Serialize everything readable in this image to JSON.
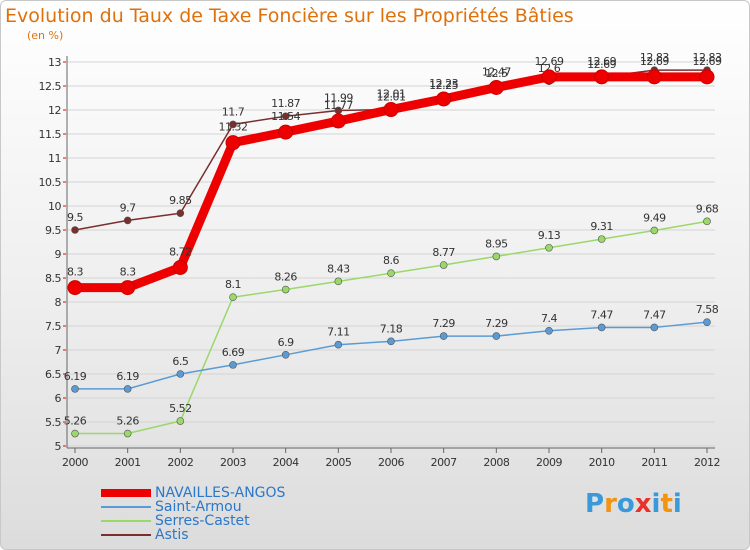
{
  "header": {
    "title": "Evolution du Taux de Taxe Foncière sur les Propriétés Bâties",
    "unit": "(en %)"
  },
  "brand": {
    "letters": [
      "P",
      "r",
      "o",
      "x",
      "i",
      "t",
      "i"
    ],
    "colors": [
      "#3a9ad9",
      "#f29312",
      "#3a9ad9",
      "#e8312a",
      "#3a9ad9",
      "#f29312",
      "#3a9ad9"
    ]
  },
  "chart_data": {
    "type": "line",
    "title": "Evolution du Taux de Taxe Foncière sur les Propriétés Bâties",
    "ylabel": "(en %)",
    "xlabel": "",
    "x": [
      "2000",
      "2001",
      "2002",
      "2003",
      "2004",
      "2005",
      "2006",
      "2007",
      "2008",
      "2009",
      "2010",
      "2011",
      "2012"
    ],
    "ylim": [
      5,
      13
    ],
    "yticks": [
      "5",
      "5.5",
      "6",
      "6.5",
      "7",
      "7.5",
      "8",
      "8.5",
      "9",
      "9.5",
      "10",
      "10.5",
      "11",
      "11.5",
      "12",
      "12.5",
      "13"
    ],
    "grid": "horizontal",
    "legend_position": "bottom-left",
    "series": [
      {
        "name": "Astis",
        "color": "#7a2e2e",
        "values": [
          9.5,
          9.7,
          9.85,
          11.7,
          11.87,
          11.99,
          12.01,
          12.25,
          12.5,
          12.6,
          12.69,
          12.83,
          12.83
        ],
        "labels": [
          "9.5",
          "9.7",
          "9.85",
          "11.7",
          "11.87",
          "11.99",
          "12.01",
          "12.25",
          "12.5",
          "12.6",
          "12.69",
          "12.83",
          "12.83"
        ]
      },
      {
        "name": "Serres-Castet",
        "color": "#9ad86a",
        "values": [
          5.26,
          5.26,
          5.52,
          8.1,
          8.26,
          8.43,
          8.6,
          8.77,
          8.95,
          9.13,
          9.31,
          9.49,
          9.68
        ],
        "labels": [
          "5.26",
          "5.26",
          "5.52",
          "8.1",
          "8.26",
          "8.43",
          "8.6",
          "8.77",
          "8.95",
          "9.13",
          "9.31",
          "9.49",
          "9.68"
        ]
      },
      {
        "name": "Saint-Armou",
        "color": "#5b9bd5",
        "values": [
          6.19,
          6.19,
          6.5,
          6.69,
          6.9,
          7.11,
          7.18,
          7.29,
          7.29,
          7.4,
          7.47,
          7.47,
          7.58
        ],
        "labels": [
          "6.19",
          "6.19",
          "6.5",
          "6.69",
          "6.9",
          "7.11",
          "7.18",
          "7.29",
          "7.29",
          "7.4",
          "7.47",
          "7.47",
          "7.58"
        ]
      },
      {
        "name": "NAVAILLES-ANGOS",
        "color": "#ee0000",
        "values": [
          8.3,
          8.3,
          8.72,
          11.32,
          11.54,
          11.77,
          12.01,
          12.23,
          12.47,
          12.69,
          12.69,
          12.69,
          12.69
        ],
        "labels": [
          "8.3",
          "8.3",
          "8.72",
          "11.32",
          "11.54",
          "11.77",
          "12.01",
          "12.23",
          "12.47",
          "12.69",
          "12.69",
          "12.69",
          "12.69"
        ]
      }
    ],
    "legend": [
      {
        "name": "NAVAILLES-ANGOS",
        "color": "#ee0000"
      },
      {
        "name": "Saint-Armou",
        "color": "#5b9bd5"
      },
      {
        "name": "Serres-Castet",
        "color": "#9ad86a"
      },
      {
        "name": "Astis",
        "color": "#7a2e2e"
      }
    ]
  }
}
